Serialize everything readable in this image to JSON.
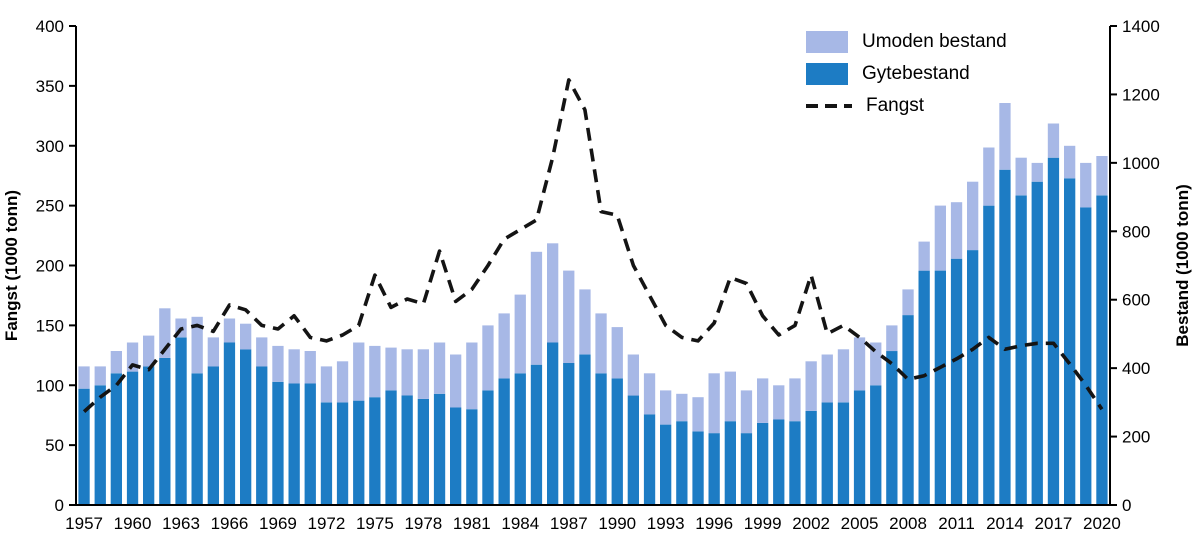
{
  "chart_data": {
    "type": "stacked-bar+line",
    "title": "",
    "xlabel": "",
    "ylabel_left": "Fangst (1000 tonn)",
    "ylabel_right": "Bestand (1000 tonn)",
    "ylim_left": [
      0,
      400
    ],
    "ylim_right": [
      0,
      1400
    ],
    "yticks_left": [
      0,
      50,
      100,
      150,
      200,
      250,
      300,
      350,
      400
    ],
    "yticks_right": [
      0,
      200,
      400,
      600,
      800,
      1000,
      1200,
      1400
    ],
    "x": [
      1957,
      1958,
      1959,
      1960,
      1961,
      1962,
      1963,
      1964,
      1965,
      1966,
      1967,
      1968,
      1969,
      1970,
      1971,
      1972,
      1973,
      1974,
      1975,
      1976,
      1977,
      1978,
      1979,
      1980,
      1981,
      1982,
      1983,
      1984,
      1985,
      1986,
      1987,
      1988,
      1989,
      1990,
      1991,
      1992,
      1993,
      1994,
      1995,
      1996,
      1997,
      1998,
      1999,
      2000,
      2001,
      2002,
      2003,
      2004,
      2005,
      2006,
      2007,
      2008,
      2009,
      2010,
      2011,
      2012,
      2013,
      2014,
      2015,
      2016,
      2017,
      2018,
      2019,
      2020
    ],
    "x_tick_labels": [
      1957,
      1960,
      1963,
      1966,
      1969,
      1972,
      1975,
      1978,
      1981,
      1984,
      1987,
      1990,
      1993,
      1996,
      1999,
      2002,
      2005,
      2008,
      2011,
      2014,
      2017,
      2020
    ],
    "legend_position": "top-right",
    "grid": false,
    "series": [
      {
        "id": "umoden",
        "name": "Umoden bestand",
        "type": "bar-stack-top",
        "axis": "right",
        "color": "#a7b8e6",
        "values": [
          65,
          55,
          65,
          85,
          90,
          145,
          55,
          165,
          85,
          70,
          75,
          85,
          105,
          100,
          95,
          105,
          120,
          170,
          150,
          125,
          135,
          145,
          150,
          155,
          195,
          190,
          190,
          230,
          330,
          290,
          270,
          190,
          175,
          150,
          120,
          120,
          100,
          80,
          100,
          175,
          145,
          125,
          130,
          100,
          125,
          145,
          140,
          155,
          155,
          125,
          75,
          75,
          85,
          190,
          165,
          200,
          170,
          195,
          110,
          55,
          100,
          95,
          130,
          115
        ]
      },
      {
        "id": "gyte",
        "name": "Gytebestand",
        "type": "bar-stack-bottom",
        "axis": "right",
        "color": "#1d7cc4",
        "values": [
          340,
          350,
          385,
          390,
          405,
          430,
          490,
          385,
          405,
          475,
          455,
          405,
          360,
          355,
          355,
          300,
          300,
          305,
          315,
          335,
          320,
          310,
          325,
          285,
          280,
          335,
          370,
          385,
          410,
          475,
          415,
          440,
          385,
          370,
          320,
          265,
          235,
          245,
          215,
          210,
          245,
          210,
          240,
          250,
          245,
          275,
          300,
          300,
          335,
          350,
          450,
          555,
          685,
          685,
          720,
          745,
          875,
          980,
          905,
          945,
          1015,
          955,
          870,
          905
        ]
      },
      {
        "id": "fangst",
        "name": "Fangst",
        "type": "line",
        "axis": "left",
        "color": "#141414",
        "dash": [
          13,
          8
        ],
        "values": [
          78,
          90,
          100,
          117,
          113,
          130,
          147,
          150,
          145,
          167,
          163,
          150,
          147,
          158,
          140,
          137,
          142,
          150,
          192,
          165,
          172,
          168,
          212,
          170,
          180,
          200,
          222,
          230,
          238,
          290,
          355,
          330,
          245,
          242,
          200,
          175,
          150,
          140,
          137,
          152,
          190,
          185,
          158,
          142,
          150,
          192,
          143,
          150,
          140,
          128,
          118,
          105,
          108,
          115,
          122,
          130,
          140,
          130,
          133,
          135,
          135,
          118,
          100,
          80
        ]
      }
    ]
  }
}
